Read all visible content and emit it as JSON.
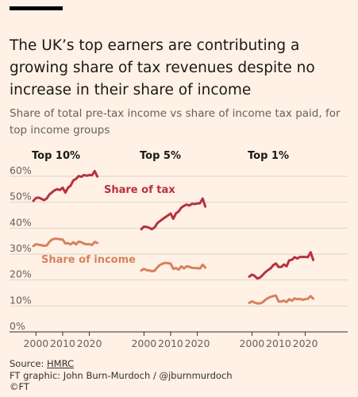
{
  "title": "The UK’s top earners are contributing a growing share of tax revenues despite no increase in their share of income",
  "subtitle": "Share of total pre-tax income vs share of income tax paid, for top income groups",
  "footer": {
    "source_prefix": "Source: ",
    "source_link": "HMRC",
    "graphic_credit": "FT graphic: John Burn-Murdoch / @jburnmurdoch",
    "copyright": "©FT"
  },
  "colors": {
    "tax": "#B8313F",
    "income": "#D7815C",
    "grid": "#DED3C9",
    "axis": "#66605C",
    "background": "#FFF1E5"
  },
  "chart_data": {
    "type": "line",
    "ylim": [
      0,
      60
    ],
    "yticks": [
      0,
      10,
      20,
      30,
      40,
      50,
      60
    ],
    "ytick_labels": [
      "0%",
      "10%",
      "20%",
      "30%",
      "40%",
      "50%",
      "60%"
    ],
    "xticks": [
      2000,
      2010,
      2020
    ],
    "xtick_labels": [
      "2000",
      "2010",
      "2020"
    ],
    "grid": true,
    "series_labels": {
      "tax": "Share of tax",
      "income": "Share of income"
    },
    "panels": [
      {
        "title": "Top 10%",
        "x": [
          1999,
          2000,
          2001,
          2002,
          2003,
          2004,
          2005,
          2006,
          2007,
          2008,
          2009,
          2010,
          2011,
          2012,
          2013,
          2014,
          2015,
          2016,
          2017,
          2018,
          2019,
          2020,
          2021,
          2022,
          2023
        ],
        "series": [
          {
            "key": "tax",
            "values": [
              50.5,
              51.6,
              51.8,
              51.3,
              50.8,
              51.4,
              53.0,
              53.8,
              54.6,
              55.0,
              54.7,
              55.6,
              53.7,
              55.6,
              56.4,
              58.4,
              59.0,
              60.1,
              59.8,
              60.5,
              60.2,
              60.5,
              60.4,
              62.0,
              59.9
            ]
          },
          {
            "key": "income",
            "values": [
              33.1,
              33.8,
              33.6,
              33.4,
              33.2,
              33.3,
              34.7,
              35.6,
              35.9,
              35.9,
              35.7,
              35.6,
              34.1,
              34.2,
              33.7,
              34.6,
              33.7,
              34.8,
              34.6,
              34.0,
              33.8,
              33.8,
              33.5,
              34.7,
              34.3
            ]
          }
        ]
      },
      {
        "title": "Top 5%",
        "x": [
          1999,
          2000,
          2001,
          2002,
          2003,
          2004,
          2005,
          2006,
          2007,
          2008,
          2009,
          2010,
          2011,
          2012,
          2013,
          2014,
          2015,
          2016,
          2017,
          2018,
          2019,
          2020,
          2021,
          2022,
          2023
        ],
        "series": [
          {
            "key": "tax",
            "values": [
              39.6,
              40.6,
              40.5,
              40.1,
              39.6,
              40.3,
              41.9,
              42.7,
              43.5,
              44.2,
              44.9,
              45.6,
              43.6,
              45.7,
              46.4,
              47.9,
              48.6,
              49.1,
              48.7,
              49.4,
              49.3,
              49.5,
              49.6,
              51.4,
              48.3
            ]
          },
          {
            "key": "income",
            "values": [
              23.7,
              24.3,
              23.8,
              23.7,
              23.4,
              23.6,
              24.9,
              25.8,
              26.3,
              26.6,
              26.5,
              26.3,
              24.3,
              24.6,
              24.0,
              25.3,
              24.5,
              25.3,
              25.1,
              24.7,
              24.6,
              24.6,
              24.4,
              25.9,
              24.8
            ]
          }
        ]
      },
      {
        "title": "Top 1%",
        "x": [
          1999,
          2000,
          2001,
          2002,
          2003,
          2004,
          2005,
          2006,
          2007,
          2008,
          2009,
          2010,
          2011,
          2012,
          2013,
          2014,
          2015,
          2016,
          2017,
          2018,
          2019,
          2020,
          2021,
          2022,
          2023
        ],
        "series": [
          {
            "key": "tax",
            "values": [
              21.3,
              22.1,
              21.6,
              20.6,
              20.9,
              21.9,
              23.0,
              23.8,
              24.5,
              25.7,
              26.4,
              25.0,
              25.0,
              26.0,
              25.3,
              27.6,
              27.8,
              28.8,
              28.3,
              28.9,
              28.9,
              28.9,
              28.8,
              30.7,
              27.7
            ]
          },
          {
            "key": "income",
            "values": [
              11.2,
              11.8,
              11.3,
              11.0,
              11.0,
              11.4,
              12.3,
              13.0,
              13.5,
              13.8,
              14.0,
              11.7,
              11.7,
              12.1,
              11.5,
              12.6,
              12.0,
              12.9,
              12.6,
              12.7,
              12.4,
              12.6,
              12.8,
              13.8,
              12.8
            ]
          }
        ]
      }
    ]
  }
}
